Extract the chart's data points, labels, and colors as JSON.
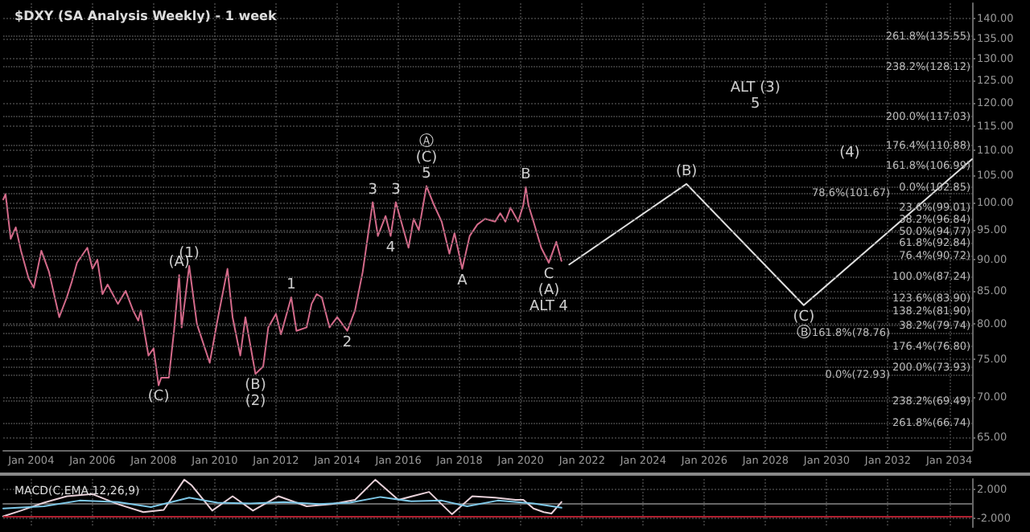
{
  "chart_data": [
    {
      "type": "line",
      "title": "$DXY (SA Analysis Weekly) - 1 week",
      "log": true,
      "grid": true,
      "marker": "none",
      "line_style": "solid",
      "xlim": [
        "2003-02",
        "2034-10"
      ],
      "xticks": [
        {
          "value": "2004-01",
          "label": "Jan 2004"
        },
        {
          "value": "2006-01",
          "label": "Jan 2006"
        },
        {
          "value": "2008-01",
          "label": "Jan 2008"
        },
        {
          "value": "2010-01",
          "label": "Jan 2010"
        },
        {
          "value": "2012-01",
          "label": "Jan 2012"
        },
        {
          "value": "2014-01",
          "label": "Jan 2014"
        },
        {
          "value": "2016-01",
          "label": "Jan 2016"
        },
        {
          "value": "2018-01",
          "label": "Jan 2018"
        },
        {
          "value": "2020-01",
          "label": "Jan 2020"
        },
        {
          "value": "2022-01",
          "label": "Jan 2022"
        },
        {
          "value": "2024-01",
          "label": "Jan 2024"
        },
        {
          "value": "2026-01",
          "label": "Jan 2026"
        },
        {
          "value": "2028-01",
          "label": "Jan 2028"
        },
        {
          "value": "2030-01",
          "label": "Jan 2030"
        },
        {
          "value": "2032-01",
          "label": "Jan 2032"
        },
        {
          "value": "2034-01",
          "label": "Jan 2034"
        }
      ],
      "ylim": [
        63.5,
        144
      ],
      "yticks": [
        {
          "value": 65,
          "label": "65.00"
        },
        {
          "value": 70,
          "label": "70.00"
        },
        {
          "value": 75,
          "label": "75.00"
        },
        {
          "value": 80,
          "label": "80.00"
        },
        {
          "value": 85,
          "label": "85.00"
        },
        {
          "value": 90,
          "label": "90.00"
        },
        {
          "value": 95,
          "label": "95.00"
        },
        {
          "value": 100,
          "label": "100.00"
        },
        {
          "value": 105,
          "label": "105.00"
        },
        {
          "value": 110,
          "label": "110.00"
        },
        {
          "value": 115,
          "label": "115.00"
        },
        {
          "value": 120,
          "label": "120.00"
        },
        {
          "value": 125,
          "label": "125.00"
        },
        {
          "value": 130,
          "label": "130.00"
        },
        {
          "value": 135,
          "label": "135.00"
        },
        {
          "value": 140,
          "label": "140.00"
        }
      ],
      "series": [
        {
          "color": "#d46a8a",
          "x": [
            "2003-02",
            "2003-03",
            "2003-05",
            "2003-07",
            "2003-09",
            "2003-12",
            "2004-02",
            "2004-05",
            "2004-08",
            "2004-12",
            "2005-03",
            "2005-05",
            "2005-07",
            "2005-11",
            "2006-01",
            "2006-03",
            "2006-05",
            "2006-07",
            "2006-11",
            "2007-02",
            "2007-05",
            "2007-07",
            "2007-08",
            "2007-11",
            "2008-01",
            "2008-03",
            "2008-04",
            "2008-07",
            "2008-09",
            "2008-11",
            "2008-12",
            "2009-03",
            "2009-06",
            "2009-11",
            "2010-02",
            "2010-06",
            "2010-08",
            "2010-11",
            "2011-01",
            "2011-05",
            "2011-08",
            "2011-10",
            "2012-01",
            "2012-03",
            "2012-07",
            "2012-09",
            "2013-01",
            "2013-03",
            "2013-05",
            "2013-07",
            "2013-10",
            "2014-01",
            "2014-05",
            "2014-08",
            "2014-11",
            "2015-03",
            "2015-05",
            "2015-08",
            "2015-10",
            "2015-12",
            "2016-05",
            "2016-07",
            "2016-09",
            "2016-12",
            "2017-03",
            "2017-06",
            "2017-09",
            "2017-11",
            "2018-02",
            "2018-05",
            "2018-08",
            "2018-11",
            "2019-03",
            "2019-05",
            "2019-07",
            "2019-09",
            "2019-12",
            "2020-02",
            "2020-03",
            "2020-04",
            "2020-06",
            "2020-09",
            "2020-12",
            "2021-03",
            "2021-05"
          ],
          "values": [
            100.5,
            101.5,
            93.5,
            95.5,
            91.5,
            87,
            85.5,
            91.5,
            88,
            81,
            84,
            86.5,
            89.5,
            92,
            88.5,
            90,
            84.5,
            86,
            83,
            85,
            82,
            80.5,
            82,
            75.5,
            76.5,
            71.5,
            72.5,
            72.5,
            79,
            87.5,
            79.5,
            89,
            80,
            74.5,
            80.5,
            88.5,
            81,
            75.5,
            81,
            73,
            74,
            79.5,
            81.5,
            78.5,
            84,
            79,
            79.5,
            83,
            84.5,
            84,
            79.5,
            81,
            79,
            82,
            88,
            100,
            94,
            97.5,
            94,
            100,
            92,
            97,
            95,
            103,
            99.5,
            96.5,
            91,
            94.5,
            88.5,
            94,
            96,
            97,
            96.5,
            98,
            96.5,
            99,
            96.5,
            99.5,
            102.8,
            99.5,
            96.5,
            92,
            89.5,
            93,
            89.8
          ]
        },
        {
          "color": "#e0e0e0",
          "x": [
            "2021-08",
            "2025-06",
            "2029-04",
            "2034-10"
          ],
          "values": [
            89.2,
            103.4,
            82.8,
            108.2
          ]
        }
      ],
      "ref_lines": [
        {
          "axis": "y",
          "value": 135.55,
          "label": "261.8%(135.55)"
        },
        {
          "axis": "y",
          "value": 128.12,
          "label": "238.2%(128.12)"
        },
        {
          "axis": "y",
          "value": 117.03,
          "label": "200.0%(117.03)"
        },
        {
          "axis": "y",
          "value": 110.88,
          "label": "176.4%(110.88)"
        },
        {
          "axis": "y",
          "value": 106.99,
          "label": "161.8%(106.99)"
        },
        {
          "axis": "y",
          "value": 102.85,
          "label": "0.0%(102.85)"
        },
        {
          "axis": "y",
          "value": 101.67,
          "label": "78.6%(101.67)"
        },
        {
          "axis": "y",
          "value": 99.01,
          "label": "23.6%(99.01)"
        },
        {
          "axis": "y",
          "value": 96.84,
          "label": "38.2%(96.84)"
        },
        {
          "axis": "y",
          "value": 94.77,
          "label": "50.0%(94.77)"
        },
        {
          "axis": "y",
          "value": 92.84,
          "label": "61.8%(92.84)"
        },
        {
          "axis": "y",
          "value": 90.72,
          "label": "76.4%(90.72)"
        },
        {
          "axis": "y",
          "value": 87.24,
          "label": "100.0%(87.24)"
        },
        {
          "axis": "y",
          "value": 83.9,
          "label": "123.6%(83.90)"
        },
        {
          "axis": "y",
          "value": 81.9,
          "label": "138.2%(81.90)"
        },
        {
          "axis": "y",
          "value": 79.74,
          "label": "38.2%(79.74)"
        },
        {
          "axis": "y",
          "value": 78.76,
          "label": "161.8%(78.76)"
        },
        {
          "axis": "y",
          "value": 76.8,
          "label": "176.4%(76.80)"
        },
        {
          "axis": "y",
          "value": 73.93,
          "label": "200.0%(73.93)"
        },
        {
          "axis": "y",
          "value": 72.93,
          "label": "0.0%(72.93)"
        },
        {
          "axis": "y",
          "value": 69.49,
          "label": "238.2%(69.49)"
        },
        {
          "axis": "y",
          "value": 66.74,
          "label": "261.8%(66.74)"
        }
      ],
      "annotations": [
        {
          "text": "(C)",
          "x": "2008-03",
          "y": 71.5
        },
        {
          "text": "(A)",
          "x": "2008-11",
          "y": 87.5
        },
        {
          "text": "(1)",
          "x": "2009-03",
          "y": 89
        },
        {
          "text": "(B)",
          "x": "2011-05",
          "y": 73
        },
        {
          "text": "(2)",
          "x": "2011-05",
          "y": 73
        },
        {
          "text": "1",
          "x": "2012-07",
          "y": 84
        },
        {
          "text": "2",
          "x": "2014-05",
          "y": 79
        },
        {
          "text": "3",
          "x": "2015-03",
          "y": 100
        },
        {
          "text": "3",
          "x": "2015-12",
          "y": 100
        },
        {
          "text": "4",
          "x": "2015-10",
          "y": 94
        },
        {
          "text": "5",
          "x": "2016-12",
          "y": 103
        },
        {
          "text": "(C)",
          "x": "2016-12",
          "y": 103
        },
        {
          "text": "Ⓐ",
          "x": "2016-12",
          "y": 103
        },
        {
          "text": "A",
          "x": "2018-02",
          "y": 88.5
        },
        {
          "text": "B",
          "x": "2020-03",
          "y": 102.8
        },
        {
          "text": "C",
          "x": "2020-12",
          "y": 89.5
        },
        {
          "text": "(A)",
          "x": "2020-12",
          "y": 89.5
        },
        {
          "text": "ALT 4",
          "x": "2020-12",
          "y": 89.5
        },
        {
          "text": "(B)",
          "x": "2025-06",
          "y": 103.4
        },
        {
          "text": "(C)",
          "x": "2029-04",
          "y": 82.8
        },
        {
          "text": "Ⓑ",
          "x": "2029-04",
          "y": 82.8
        },
        {
          "text": "5",
          "x": "2027-09",
          "y": 117.03
        },
        {
          "text": "ALT (3)",
          "x": "2027-09",
          "y": 117.03
        },
        {
          "text": "(4)",
          "x": "2030-10",
          "y": 106.99
        }
      ]
    },
    {
      "type": "line",
      "title": "MACD(C,EMA,12,26,9)",
      "grid": true,
      "marker": "none",
      "tick_labels": "y",
      "xlim": [
        "2003-02",
        "2034-10"
      ],
      "xticks": [
        {
          "value": "2004-01",
          "label": null
        },
        {
          "value": "2006-01",
          "label": null
        },
        {
          "value": "2008-01",
          "label": null
        },
        {
          "value": "2010-01",
          "label": null
        },
        {
          "value": "2012-01",
          "label": null
        },
        {
          "value": "2014-01",
          "label": null
        },
        {
          "value": "2016-01",
          "label": null
        },
        {
          "value": "2018-01",
          "label": null
        },
        {
          "value": "2020-01",
          "label": null
        },
        {
          "value": "2022-01",
          "label": null
        },
        {
          "value": "2024-01",
          "label": null
        },
        {
          "value": "2026-01",
          "label": null
        },
        {
          "value": "2028-01",
          "label": null
        },
        {
          "value": "2030-01",
          "label": null
        },
        {
          "value": "2032-01",
          "label": null
        },
        {
          "value": "2034-01",
          "label": null
        }
      ],
      "ylim": [
        -3.2,
        3.5
      ],
      "yticks": [
        {
          "value": -2,
          "label": "-2.000"
        },
        {
          "value": 2,
          "label": "2.000"
        }
      ],
      "series": [
        {
          "color": "#e8d0d8",
          "x": [
            "2003-02",
            "2003-09",
            "2004-06",
            "2005-03",
            "2006-01",
            "2006-11",
            "2007-09",
            "2008-05",
            "2009-01",
            "2009-04",
            "2009-12",
            "2010-08",
            "2011-04",
            "2012-02",
            "2013-01",
            "2013-11",
            "2014-08",
            "2015-04",
            "2016-01",
            "2017-01",
            "2017-10",
            "2018-06",
            "2019-03",
            "2019-11",
            "2020-02",
            "2020-06",
            "2020-10",
            "2021-01",
            "2021-05"
          ],
          "values": [
            -1.7,
            -0.9,
            0.2,
            1.1,
            1.4,
            0,
            -1.1,
            -0.8,
            3.4,
            2.6,
            -0.9,
            1.1,
            -0.9,
            1.1,
            -0.3,
            0,
            0.6,
            3.4,
            0.6,
            1.7,
            -1.4,
            1.1,
            0.9,
            0.6,
            0.6,
            -0.6,
            -1.1,
            -1.3,
            0.3
          ]
        },
        {
          "color": "#7ec8e8",
          "x": [
            "2003-02",
            "2004-06",
            "2005-08",
            "2006-11",
            "2007-12",
            "2009-03",
            "2010-02",
            "2011-03",
            "2012-04",
            "2013-06",
            "2014-06",
            "2015-06",
            "2016-06",
            "2017-06",
            "2018-04",
            "2019-04",
            "2020-06",
            "2021-05"
          ],
          "values": [
            -0.6,
            -0.3,
            0.5,
            0.3,
            -0.4,
            0.9,
            0.2,
            0.1,
            0.3,
            0,
            0.2,
            1.0,
            0.4,
            0.5,
            -0.3,
            0.5,
            0.1,
            -0.5
          ]
        }
      ],
      "ref_lines": [
        {
          "axis": "y",
          "value": -1.7,
          "color": "#b02030"
        }
      ]
    }
  ]
}
